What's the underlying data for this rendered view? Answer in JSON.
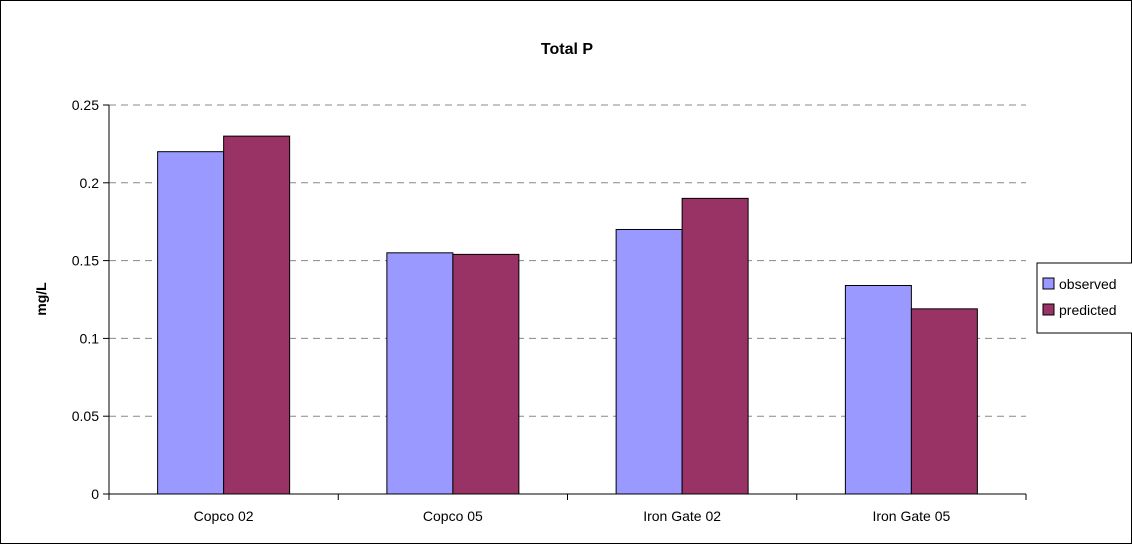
{
  "chart_data": {
    "type": "bar",
    "title": "Total P",
    "ylabel": "mg/L",
    "xlabel": "",
    "categories": [
      "Copco 02",
      "Copco 05",
      "Iron Gate 02",
      "Iron Gate 05"
    ],
    "series": [
      {
        "name": "observed",
        "values": [
          0.22,
          0.155,
          0.17,
          0.134
        ],
        "color": "#9999ff"
      },
      {
        "name": "predicted",
        "values": [
          0.23,
          0.154,
          0.19,
          0.119
        ],
        "color": "#993366"
      }
    ],
    "ylim": [
      0,
      0.25
    ],
    "yticks": [
      "0",
      "0.05",
      "0.1",
      "0.15",
      "0.2",
      "0.25"
    ],
    "grid": true,
    "legend_position": "right"
  }
}
